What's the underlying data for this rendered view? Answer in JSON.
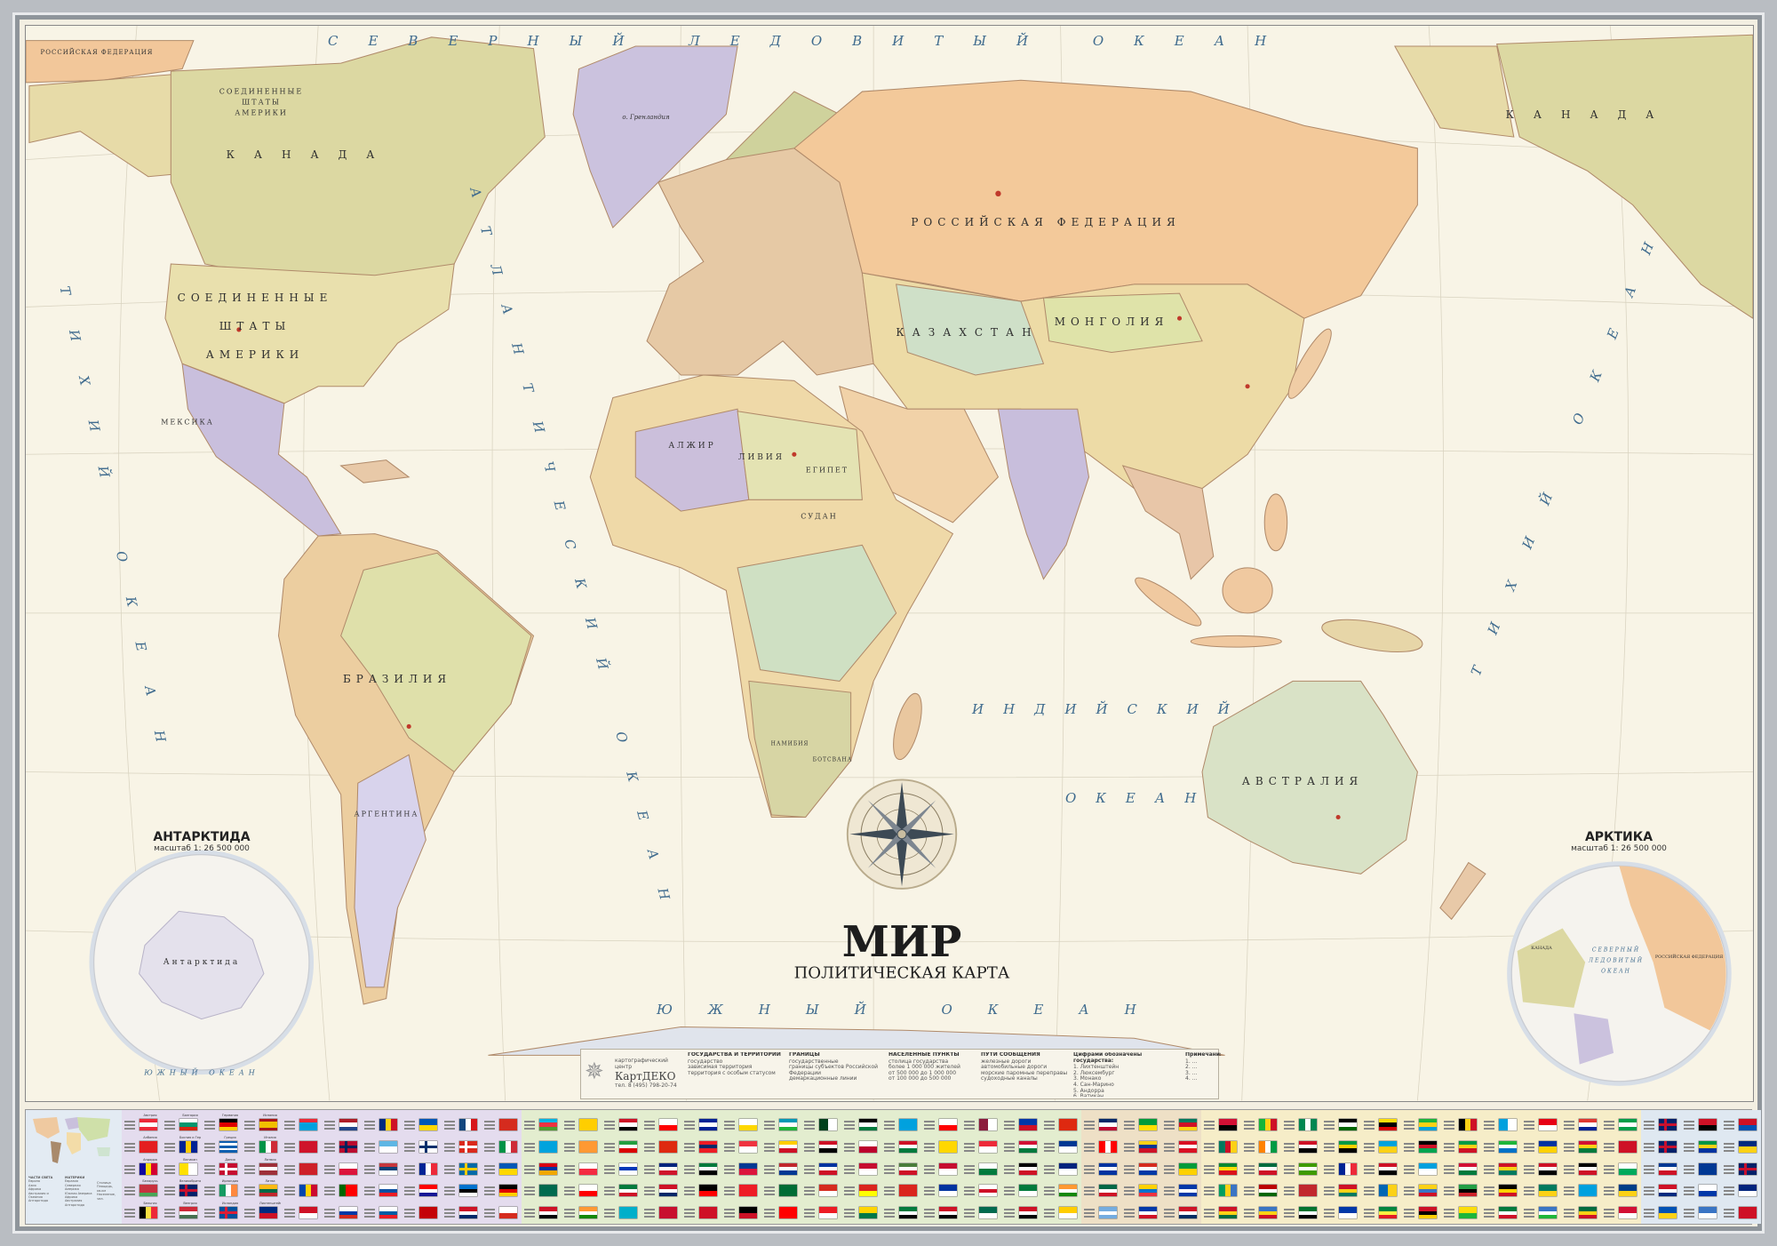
{
  "title": "МИР",
  "subtitle": "ПОЛИТИЧЕСКАЯ КАРТА",
  "oceans": {
    "arctic": "СЕВЕРНЫЙ ЛЕДОВИТЫЙ ОКЕАН",
    "pacific_left": "ТИХИЙ ОКЕАН",
    "pacific_right": "ТИХИЙ ОКЕАН",
    "atlantic": "АТЛАНТИЧЕСКИЙ ОКЕАН",
    "indian": "ИНДИЙСКИЙ",
    "indian_2": "ОКЕАН",
    "southern": "ЮЖНЫЙ ОКЕАН"
  },
  "countries": {
    "russia": "РОССИЙСКАЯ ФЕДЕРАЦИЯ",
    "russia_left": "РОССИЙСКАЯ ФЕДЕРАЦИЯ",
    "canada": "КАНАДА",
    "canada_right": "КАНАДА",
    "usa_1": "СОЕДИНЕННЫЕ",
    "usa_2": "ШТАТЫ",
    "usa_3": "АМЕРИКИ",
    "alaska_1": "СОЕДИНЕННЫЕ",
    "alaska_2": "ШТАТЫ",
    "alaska_3": "АМЕРИКИ",
    "mexico": "МЕКСИКА",
    "brazil": "БРАЗИЛИЯ",
    "argentina": "АРГЕНТИНА",
    "kazakhstan": "КАЗАХСТАН",
    "mongolia": "МОНГОЛИЯ",
    "algeria": "АЛЖИР",
    "libya": "ЛИВИЯ",
    "egypt": "ЕГИПЕТ",
    "sudan": "СУДАН",
    "namibia": "НАМИБИЯ",
    "botswana": "БОТСВАНА",
    "australia": "АВСТРАЛИЯ",
    "greenland": "о. Гренландия"
  },
  "insets": {
    "antarctica": {
      "title": "АНТАРКТИДА",
      "scale": "масштаб 1: 26 500 000",
      "land": "Антарктида",
      "ocean": "ЮЖНЫЙ ОКЕАН"
    },
    "arctic": {
      "title": "АРКТИКА",
      "scale": "масштаб 1: 26 500 000",
      "ocean_1": "СЕВЕРНЫЙ",
      "ocean_2": "ЛЕДОВИТЫЙ",
      "ocean_3": "ОКЕАН",
      "russia": "РОССИЙСКАЯ ФЕДЕРАЦИЯ",
      "canada": "КАНАДА"
    }
  },
  "legend": {
    "publisher_caption": "картографический центр",
    "publisher": "КартДЕКО",
    "phone": "тел. 8 (495) 798-20-74",
    "sections": [
      {
        "heading": "ГОСУДАРСТВА И ТЕРРИТОРИИ",
        "items": [
          "государство",
          "зависимая территория",
          "территория с особым статусом"
        ]
      },
      {
        "heading": "ГРАНИЦЫ",
        "items": [
          "государственные",
          "границы субъектов Российской Федерации",
          "демаркационные линии"
        ]
      },
      {
        "heading": "НАСЕЛЕННЫЕ ПУНКТЫ",
        "items": [
          "столица государства",
          "более 1 000 000 жителей",
          "от 500 000 до 1 000 000",
          "от 100 000 до 500 000"
        ]
      },
      {
        "heading": "ПУТИ СООБЩЕНИЯ",
        "items": [
          "железные дороги",
          "автомобильные дороги",
          "морские паромные переправы",
          "судоходные каналы"
        ]
      },
      {
        "heading": "Цифрами обозначены государства:",
        "items": [
          "1. Лихтенштейн",
          "2. Люксембург",
          "3. Монако",
          "4. Сан-Марино",
          "5. Андорра",
          "6. Ватикан"
        ]
      },
      {
        "heading": "Примечания",
        "items": [
          "1. ...",
          "2. ...",
          "3. ...",
          "4. ..."
        ]
      }
    ]
  },
  "minimap_legend": {
    "col1_heading": "ЧАСТИ СВЕТА",
    "col1": [
      "Европа",
      "Азия",
      "Африка",
      "Австралия и Океания",
      "Антарктида"
    ],
    "col2_heading": "МАТЕРИКИ",
    "col2": [
      "Евразия",
      "Северная Америка",
      "Южная Америка",
      "Африка",
      "Австралия",
      "Антарктида"
    ],
    "col3": [
      "Столица",
      "Площадь, кв.км",
      "Население, чел."
    ]
  },
  "colors": {
    "ocean": "#f8f4e6",
    "ocean_text": "#3f6b8e",
    "frame": "#b9bdc2",
    "capital": "#c0392b"
  },
  "flag_regions": [
    {
      "bg": "#e4dcee",
      "flags": [
        {
          "n": "Австрия",
          "f": "h|#ed2939|#ffffff|#ed2939"
        },
        {
          "n": "Албания",
          "f": "p|#e41e20"
        },
        {
          "n": "Андорра",
          "f": "v|#10069f|#fedd00|#d50032"
        },
        {
          "n": "Беларусь",
          "f": "h|#c8313e|#c8313e|#4aa657"
        },
        {
          "n": "Бельгия",
          "f": "v|#000000|#fae042|#ed2939"
        },
        {
          "n": "Болгария",
          "f": "h|#ffffff|#00966e|#d62612"
        },
        {
          "n": "Босния и Герцеговина",
          "f": "v|#002395|#fecb00|#002395"
        },
        {
          "n": "Ватикан",
          "f": "v|#ffe000|#ffffff"
        },
        {
          "n": "Великобритания",
          "f": "x|#012169|#c8102e"
        },
        {
          "n": "Венгрия",
          "f": "h|#ce2939|#ffffff|#477050"
        },
        {
          "n": "Германия",
          "f": "h|#000000|#dd0000|#ffce00"
        },
        {
          "n": "Греция",
          "f": "h|#0d5eaf|#ffffff|#0d5eaf|#ffffff|#0d5eaf"
        },
        {
          "n": "Дания",
          "f": "x|#c60c30|#ffffff"
        },
        {
          "n": "Ирландия",
          "f": "v|#169b62|#ffffff|#ff883e"
        },
        {
          "n": "Исландия",
          "f": "x|#02529c|#dc1e35"
        },
        {
          "n": "Испания",
          "f": "h|#aa151b|#f1bf00|#f1bf00|#aa151b"
        },
        {
          "n": "Италия",
          "f": "v|#009246|#ffffff|#ce2b37"
        },
        {
          "n": "Латвия",
          "f": "h|#9e3039|#ffffff|#9e3039"
        },
        {
          "n": "Литва",
          "f": "h|#fdb913|#006a44|#c1272d"
        },
        {
          "n": "Лихтенштейн",
          "f": "h|#002b7f|#ce1126"
        },
        "h|#ed2939|#00a1de|#00a1de",
        "p|#cf142b",
        "h|#ce2028|#ce2028",
        "v|#0046ae|#ffd200|#cc092f",
        "h|#ce1126|#ffffff",
        "h|#ae1c28|#ffffff|#21468b",
        "x|#ba0c2f|#00205b",
        "h|#ffffff|#dc143c",
        "v|#006600|#ff0000|#ff0000",
        "h|#ffffff|#0039a6|#d52b1e",
        "v|#002b7f|#fcd116|#ce1126",
        "h|#5eb6e4|#ffffff",
        "h|#c6363c|#0c4076|#ffffff",
        "h|#ffffff|#0b4ea2|#ee1c25",
        "h|#ffffff|#005da4|#ed1c24",
        "h|#0057b7|#ffd700",
        "x|#ffffff|#002f6c",
        "v|#002395|#ffffff|#ed2939",
        "h|#ff0000|#ffffff|#171796",
        "p|#c40308",
        "v|#11457e|#ffffff|#d7141a",
        "x|#da291c|#ffffff",
        "x|#006aa7|#fecc00",
        "h|#0072ce|#000000|#ffffff",
        "h|#ce1126|#ffffff|#002868",
        "p|#d52b1e",
        "v|#009246|#ffffff|#ce2b37",
        "h|#0057b7|#ffd700",
        "h|#000000|#dd0000|#ffce00",
        "h|#ffffff|#d52b1e"
      ]
    },
    {
      "bg": "#e3edcf",
      "flags": [
        "h|#00b5e2|#ef3340|#509e2f",
        "p|#00a3dd",
        "h|#d90012|#0033a0|#f2a800",
        "h|#006a4e|#006a4e",
        "h|#ce1126|#ffffff|#000000",
        "p|#ffce00",
        "p|#ff9933",
        "h|#ffffff|#f42a41",
        "h|#ffffff|#ff0000",
        "h|#ff9933|#ffffff|#138808",
        "h|#ce1126|#ffffff|#000000",
        "h|#239f40|#ffffff|#da0000",
        "h|#ffffff|#0038b8|#ffffff",
        "h|#007a3d|#ffffff|#ce1126",
        "h|#00afca|#00afca",
        "h|#ffffff|#ff0000",
        "p|#de2910",
        "h|#00247d|#ffffff|#cf142b",
        "h|#ce1126|#ffffff|#002868",
        "p|#c8102e",
        "h|#002395|#ffffff|#002395",
        "h|#ed1c24|#002868|#ed1c24",
        "h|#007a3d|#ffffff|#000000",
        "h|#000000|#ff0000",
        "h|#ce1126|#ce1126",
        "h|#ffffff|#ffd700",
        "h|#ef3340|#ffffff",
        "h|#003893|#dc143c",
        "p|#ee1c25",
        "h|#000000|#ce1126",
        "h|#0099b5|#ffffff|#1eb53a",
        "h|#ffcd00|#ffffff|#ce1126",
        "h|#c1272d|#ffffff|#003893",
        "p|#006c35",
        "p|#ff0000",
        "v|#01411c|#ffffff",
        "h|#ce1126|#ffffff|#000000",
        "h|#0033a0|#ffffff|#ce1126",
        "h|#d52b1e|#ffffff",
        "h|#ed1c24|#ffffff",
        "h|#000000|#ffffff|#007a3d",
        "h|#ffffff|#bc002d",
        "h|#c60c30|#ffffff",
        "h|#da251d|#ffff00",
        "h|#ffd500|#007847",
        "p|#00a1de",
        "h|#ce1126|#ffffff|#007a3d",
        "h|#4a7d3b|#ffffff|#ce1126",
        "p|#da251d",
        "h|#007a3d|#ffffff|#000000",
        "h|#ffffff|#ff0000",
        "p|#ffd700",
        "h|#c60c30|#ffffff",
        "h|#0033a0|#ffffff",
        "h|#ce1126|#ffffff|#000000",
        "v|#8d1b3d|#ffffff",
        "h|#ed2939|#ffffff",
        "h|#ffffff|#007a3d",
        "h|#ffffff|#ce1126|#ffffff",
        "h|#006a4e|#ffffff",
        "h|#0038a8|#ce1126",
        "h|#d21034|#ffffff|#007a3d",
        "h|#000000|#ffffff|#ce1126",
        "h|#007a3d|#ffffff",
        "h|#ce1126|#ffffff|#000000",
        "p|#de2910",
        "h|#003893|#ffffff",
        "h|#00247d|#ffffff",
        "h|#ff9933|#ffffff|#138808",
        "h|#ffcd00|#ffffff"
      ]
    },
    {
      "bg": "#eee0c6",
      "flags": [
        "h|#002868|#ffffff|#bf0a30",
        "v|#ff0000|#ffffff|#ff0000",
        "h|#0033a0|#ffffff|#0033a0",
        "h|#006847|#ffffff|#ce1126",
        "h|#74acdf|#ffffff|#74acdf",
        "h|#009c3b|#ffdf00",
        "h|#fcd116|#003893|#ce1126",
        "h|#d52b1e|#ffffff|#0039a6",
        "h|#ffd100|#0072ce|#ef3340",
        "h|#0038a8|#ffffff|#ce1126",
        "h|#007a5e|#ce1126|#fcd116",
        "h|#d91023|#ffffff|#d91023",
        "h|#009b3a|#fed100",
        "h|#0038a8|#ffffff|#0038a8",
        "h|#ce1126|#ffffff|#002d62"
      ]
    },
    {
      "bg": "#f6edc8",
      "flags": [
        "h|#d21034|#000000",
        "v|#007a5e|#ce1126|#fcd116",
        "h|#078930|#fcdd09|#da121a",
        "v|#009e60|#fcd116|#3a75c4",
        "h|#ce1126|#fcd116|#006b3f",
        "v|#14b53a|#fcd116|#ce1126",
        "v|#ff8200|#ffffff|#009a44",
        "h|#006b3f|#ffffff|#ce1126",
        "h|#bb0000|#ffffff|#006600",
        "h|#3a75c4|#fcd116|#ce1126",
        "v|#008751|#ffffff|#008751",
        "h|#ce1126|#ffffff|#000000",
        "h|#3e9a00|#ffffff|#3e9a00",
        "p|#c1272d",
        "h|#00732f|#ffffff|#000000",
        "h|#000000|#ffffff|#006600",
        "h|#009a44|#ffd100|#000000",
        "v|#002395|#ffffff|#ed2939",
        "h|#ce1126|#fcd116|#007a5e",
        "h|#0038a8|#ffffff",
        "h|#fcdd09|#000000|#d90000",
        "h|#00a3dd|#fcd116",
        "h|#ce1126|#ffffff|#000000",
        "v|#0066b3|#fcd116",
        "h|#00853f|#fdef42|#e31b23",
        "h|#1eb53a|#fcd116|#00a3dd",
        "h|#000000|#ce1126|#00a550",
        "h|#00a1de|#ffffff",
        "h|#fcd116|#3a75c4|#ce1126",
        "h|#ce1126|#000000|#ffce00",
        "v|#000000|#fcd116|#ce1126",
        "h|#009a44|#fcd116|#ce1126",
        "h|#d21034|#ffffff|#007a3d",
        "h|#239e46|#000000|#cc2229",
        "h|#fcdd09|#1eb53a",
        "v|#00a1de|#ffffff",
        "h|#1eb53a|#ffffff|#0072c6",
        "h|#ce1126|#fcd116|#007a5e",
        "h|#000000|#ffd100|#ce1126",
        "h|#007a3d|#ffffff|#ce1126",
        "h|#e70013|#ffffff",
        "h|#0033a0|#ffd100",
        "h|#ce1126|#ffffff|#000000",
        "h|#007a5e|#fcd116",
        "h|#3a75c4|#ffffff|#1eb53a",
        "h|#de3831|#ffffff|#002395",
        "h|#d21034|#fcd116|#007a3d",
        "h|#000000|#ffffff|#ce1126",
        "p|#00a1de",
        "h|#006b3f|#fcd116|#ce1126",
        "h|#009e49|#ffffff|#009e49",
        "h|#ce1126|#ce1126",
        "h|#ffffff|#00a95c",
        "h|#003f87|#fcd116",
        "h|#d21034|#ffffff"
      ]
    },
    {
      "bg": "#dfe8f1",
      "flags": [
        "x|#012169|#c8102e",
        "x|#012169|#c8102e",
        "h|#003893|#ffffff|#ce1126",
        "h|#ce1126|#ffffff|#002b7f",
        "h|#0052b4|#fcd116",
        "h|#ce1126|#000000",
        "h|#009543|#fcd116|#0033a0",
        "p|#003893",
        "h|#ffffff|#0038a8",
        "h|#3a75c4|#ffffff",
        "h|#ce1126|#0052b4",
        "h|#002b7f|#fcd116",
        "x|#012169|#c8102e",
        "h|#00247d|#ffffff",
        "p|#ce1126"
      ]
    }
  ]
}
